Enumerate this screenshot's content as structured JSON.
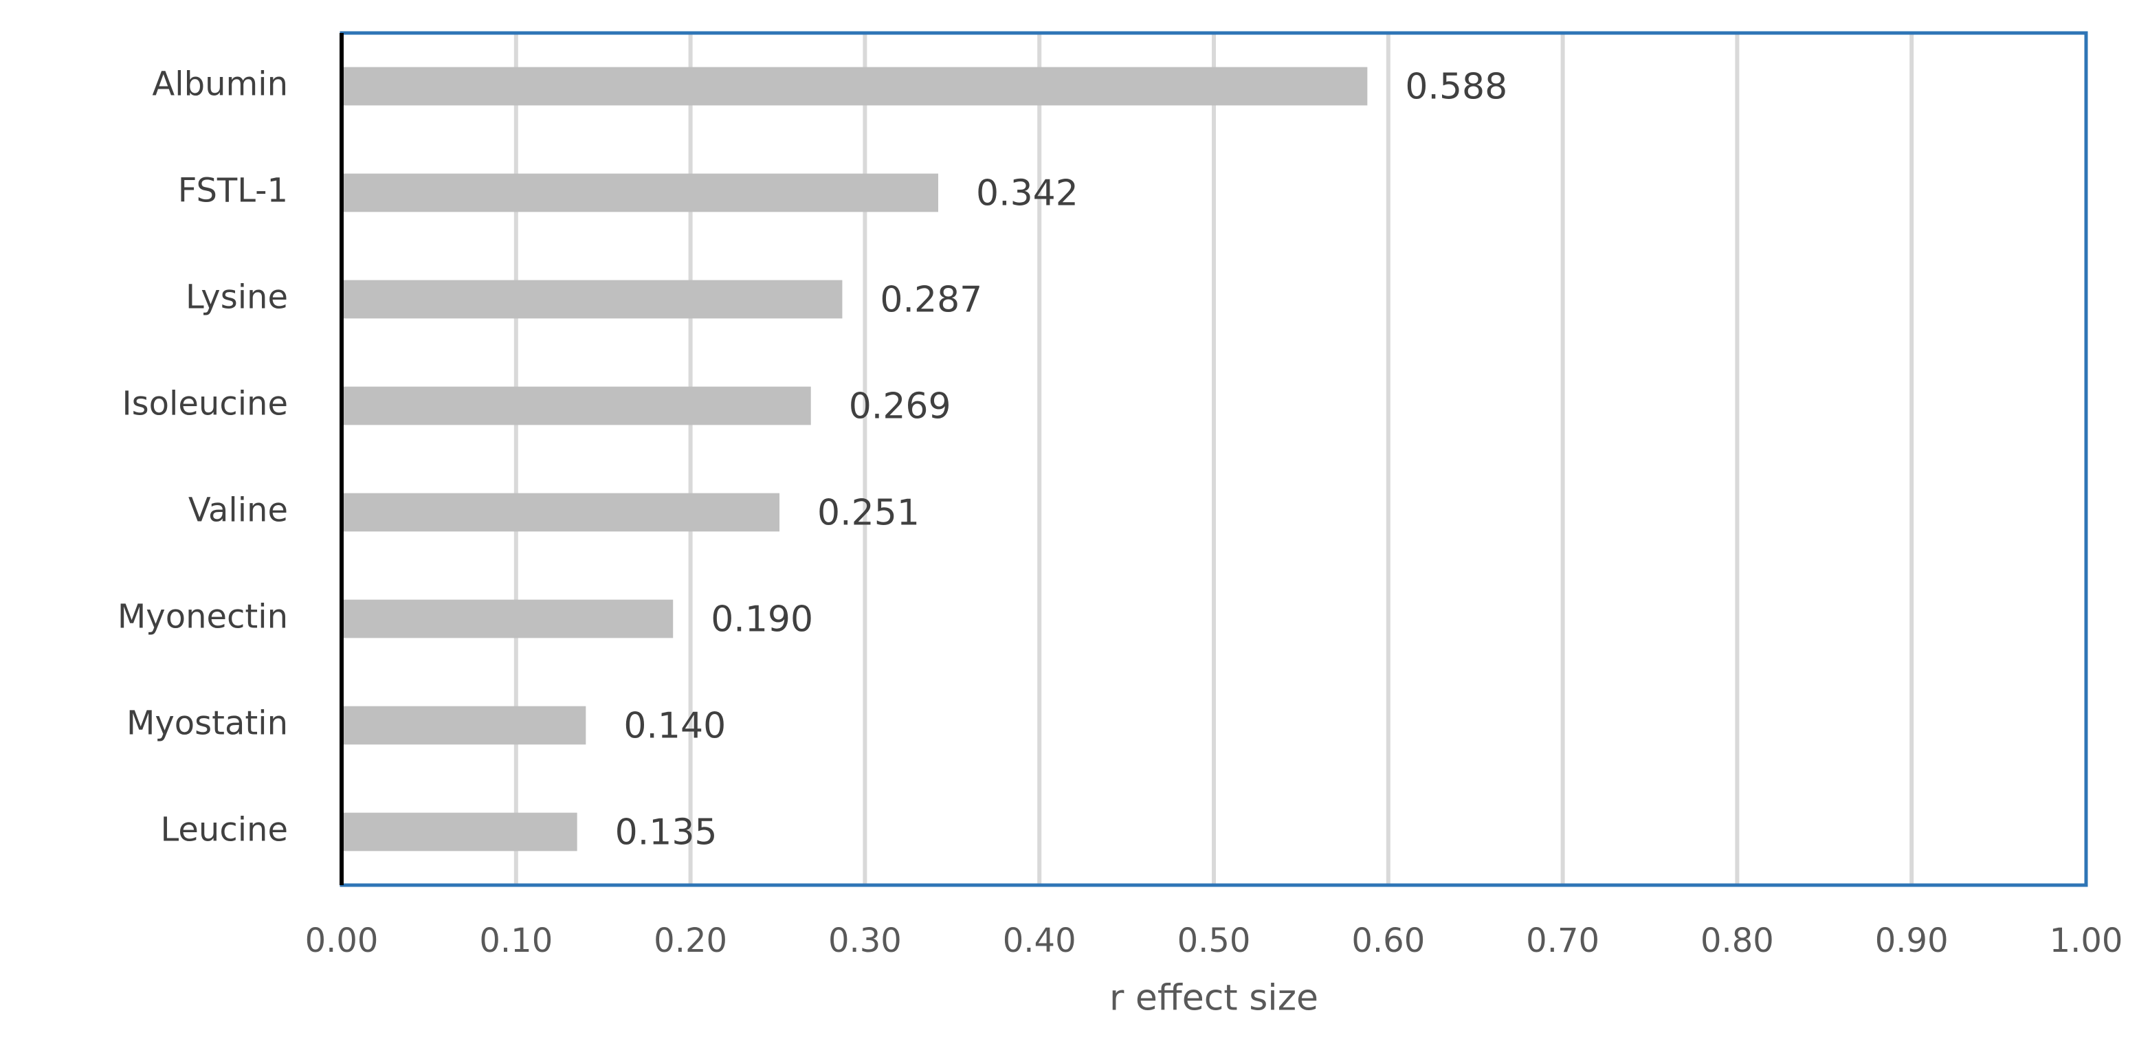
{
  "chart_data": {
    "type": "bar",
    "orientation": "horizontal",
    "categories": [
      "Albumin",
      "FSTL-1",
      "Lysine",
      "Isoleucine",
      "Valine",
      "Myonectin",
      "Myostatin",
      "Leucine"
    ],
    "values": [
      0.588,
      0.342,
      0.287,
      0.269,
      0.251,
      0.19,
      0.14,
      0.135
    ],
    "value_labels": [
      "0.588",
      "0.342",
      "0.287",
      "0.269",
      "0.251",
      "0.190",
      "0.140",
      "0.135"
    ],
    "xlabel": "r effect size",
    "ylabel": "",
    "xlim": [
      0,
      1
    ],
    "x_ticks": [
      "0.00",
      "0.10",
      "0.20",
      "0.30",
      "0.40",
      "0.50",
      "0.60",
      "0.70",
      "0.80",
      "0.90",
      "1.00"
    ],
    "grid": "vertical",
    "legend": "none",
    "colors": {
      "bar": "#bfbfbf",
      "gridline": "#d9d9d9",
      "frame": "#2e75b6",
      "y_axis": "#000000"
    }
  }
}
